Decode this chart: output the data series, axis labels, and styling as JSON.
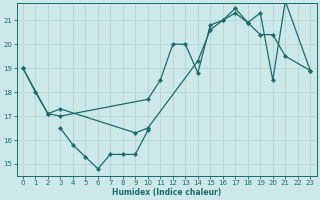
{
  "xlabel": "Humidex (Indice chaleur)",
  "xlim": [
    -0.5,
    23.5
  ],
  "ylim": [
    14.5,
    21.7
  ],
  "yticks": [
    15,
    16,
    17,
    18,
    19,
    20,
    21
  ],
  "xticks": [
    0,
    1,
    2,
    3,
    4,
    5,
    6,
    7,
    8,
    9,
    10,
    11,
    12,
    13,
    14,
    15,
    16,
    17,
    18,
    19,
    20,
    21,
    22,
    23
  ],
  "bg_color": "#cde8e8",
  "line_color": "#1a6b6b",
  "grid_color": "#b0d0d0",
  "lines": [
    {
      "x": [
        0,
        1,
        2,
        3,
        10,
        11,
        12,
        13,
        14,
        15,
        16,
        17,
        18,
        19,
        20,
        21,
        23
      ],
      "y": [
        19.0,
        18.0,
        17.1,
        17.0,
        17.7,
        18.5,
        20.0,
        20.0,
        18.8,
        20.8,
        21.0,
        21.5,
        20.9,
        20.4,
        20.4,
        19.5,
        18.9
      ]
    },
    {
      "x": [
        3,
        4,
        5,
        6,
        7,
        8,
        9,
        10
      ],
      "y": [
        16.5,
        15.8,
        15.3,
        14.8,
        15.4,
        15.4,
        15.4,
        16.4
      ]
    },
    {
      "x": [
        0,
        2,
        3,
        9,
        10,
        14,
        15,
        16,
        17,
        18,
        19,
        20,
        21,
        23
      ],
      "y": [
        19.0,
        17.1,
        17.3,
        16.3,
        16.5,
        19.3,
        20.6,
        21.0,
        21.3,
        20.9,
        21.3,
        18.5,
        21.8,
        18.9
      ]
    }
  ]
}
